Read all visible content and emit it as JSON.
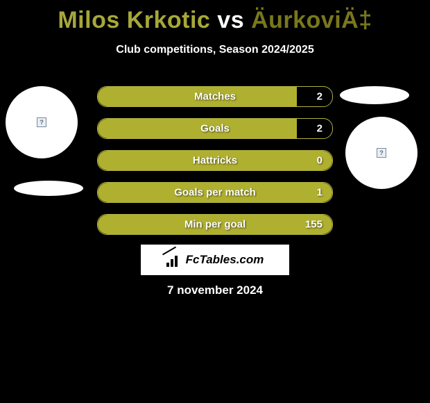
{
  "colors": {
    "background": "#000000",
    "player1_color": "#a7a73a",
    "player2_color": "#78781d",
    "bar_fill": "#b0b030",
    "bar_border": "#b0b040",
    "text_white": "#ffffff",
    "brand_bg": "#ffffff"
  },
  "header": {
    "player1": "Milos Krkotic",
    "vs": "vs",
    "player2": "ÄurkoviÄ‡",
    "subtitle": "Club competitions, Season 2024/2025"
  },
  "stats": [
    {
      "label": "Matches",
      "value": "2",
      "fill_pct": 85
    },
    {
      "label": "Goals",
      "value": "2",
      "fill_pct": 85
    },
    {
      "label": "Hattricks",
      "value": "0",
      "fill_pct": 100
    },
    {
      "label": "Goals per match",
      "value": "1",
      "fill_pct": 100
    },
    {
      "label": "Min per goal",
      "value": "155",
      "fill_pct": 100
    }
  ],
  "brand": {
    "text": "FcTables.com"
  },
  "footer": {
    "date": "7 november 2024"
  }
}
